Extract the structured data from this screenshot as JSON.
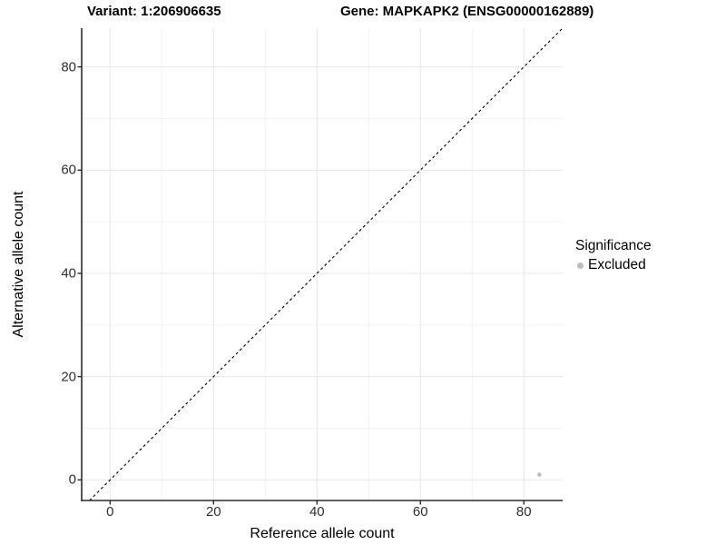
{
  "header": {
    "variant_title": "Variant: 1:206906635",
    "gene_title": "Gene: MAPKAPK2 (ENSG00000162889)"
  },
  "chart_data": {
    "type": "scatter",
    "xlabel": "Reference allele count",
    "ylabel": "Alternative allele count",
    "x_ticks": [
      0,
      20,
      40,
      60,
      80
    ],
    "y_ticks": [
      0,
      20,
      40,
      60,
      80
    ],
    "xlim": [
      -5.5,
      87.5
    ],
    "ylim": [
      -4,
      87.5
    ],
    "grid": true,
    "legend_position": "right",
    "legend": {
      "title": "Significance",
      "entries": [
        {
          "label": "Excluded",
          "color": "#bdbdbd"
        }
      ]
    },
    "series": [
      {
        "name": "Excluded",
        "color": "#bdbdbd",
        "points": [
          {
            "x": 83,
            "y": 1
          }
        ]
      }
    ],
    "reference_line": {
      "type": "identity",
      "style": "dashed",
      "color": "#000000"
    },
    "colors": {
      "grid_major": "#e9e9e9",
      "grid_minor": "#f2f2f2",
      "axis_line": "#2b2b2b",
      "tick_text": "#303030"
    }
  }
}
